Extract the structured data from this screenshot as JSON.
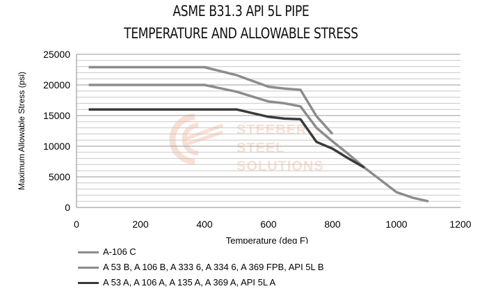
{
  "chart_data": {
    "type": "line",
    "title_lines": [
      "ASME B31.3 API 5L PIPE",
      "TEMPERATURE AND ALLOWABLE STRESS"
    ],
    "xlabel": "Temperature (deg F)",
    "ylabel": "Maximum Allowable Stress (psi)",
    "xlim": [
      0,
      1200
    ],
    "ylim": [
      0,
      25000
    ],
    "x_ticks": [
      "0",
      "200",
      "400",
      "600",
      "800",
      "1000",
      "1200"
    ],
    "y_ticks": [
      "0",
      "5000",
      "10000",
      "15000",
      "20000",
      "25000"
    ],
    "grid": true,
    "legend_position": "bottom",
    "series": [
      {
        "name": "A-106 C",
        "color": "#8c8c8c",
        "points": [
          [
            38,
            22900
          ],
          [
            400,
            22900
          ],
          [
            500,
            21600
          ],
          [
            600,
            19700
          ],
          [
            650,
            19400
          ],
          [
            700,
            19200
          ],
          [
            750,
            14900
          ],
          [
            800,
            12000
          ]
        ]
      },
      {
        "name": "A 53 B, A 106 B, A 333 6, A 334 6, A 369 FPB,  API 5L B",
        "color": "#8c8c8c",
        "points": [
          [
            38,
            20000
          ],
          [
            400,
            20000
          ],
          [
            500,
            18900
          ],
          [
            600,
            17300
          ],
          [
            650,
            17000
          ],
          [
            700,
            16500
          ],
          [
            750,
            13000
          ],
          [
            800,
            10800
          ],
          [
            850,
            8700
          ],
          [
            900,
            6500
          ],
          [
            950,
            4500
          ],
          [
            1000,
            2500
          ],
          [
            1050,
            1600
          ],
          [
            1100,
            1000
          ]
        ]
      },
      {
        "name": "A 53 A, A 106 A, A 135 A, A 369 A, API 5L A",
        "color": "#3a3a3a",
        "points": [
          [
            38,
            16000
          ],
          [
            400,
            16000
          ],
          [
            500,
            16000
          ],
          [
            600,
            14800
          ],
          [
            650,
            14500
          ],
          [
            700,
            14400
          ],
          [
            750,
            10700
          ],
          [
            800,
            9600
          ],
          [
            850,
            8000
          ],
          [
            900,
            6500
          ]
        ]
      }
    ]
  },
  "watermark": {
    "lines": [
      "STEEBER",
      "STEEL",
      "SOLUTIONS"
    ],
    "color": "#e8713a"
  }
}
